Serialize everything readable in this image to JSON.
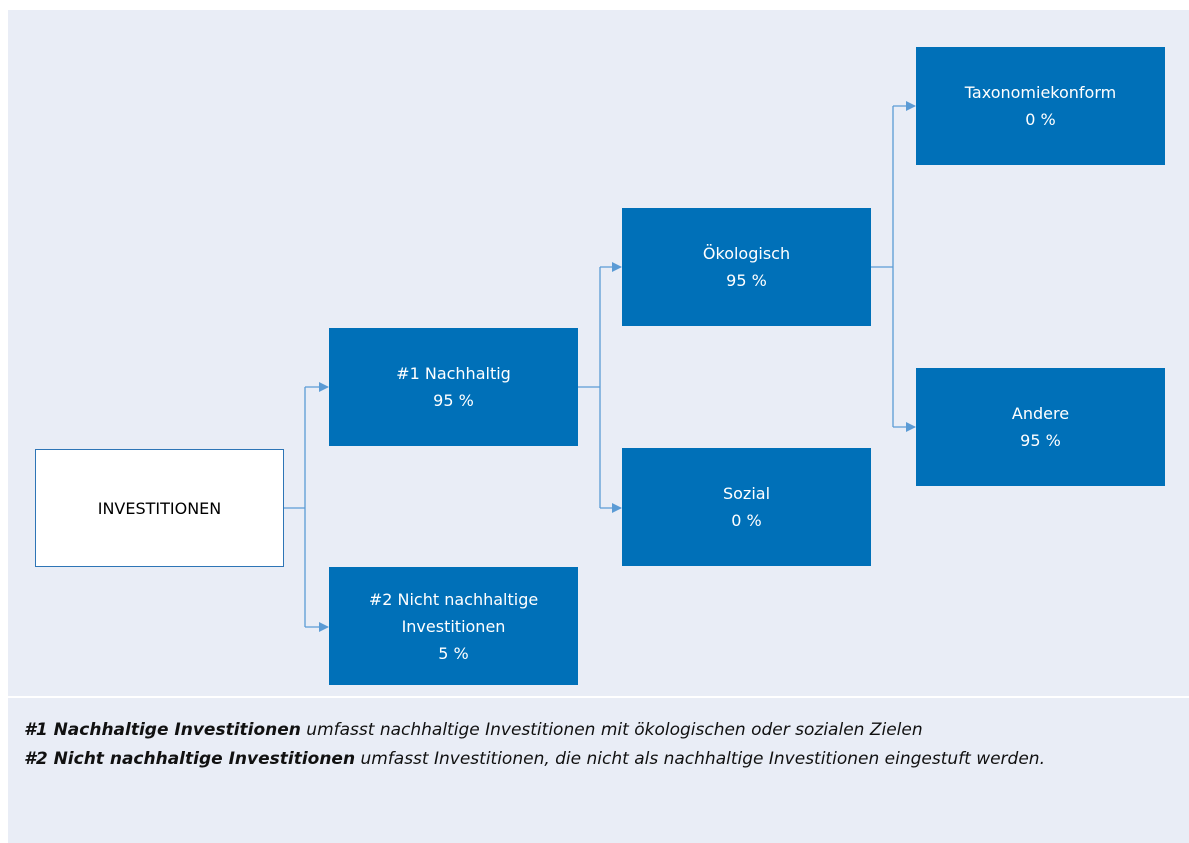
{
  "nodes": [
    {
      "label": [
        "INVESTITIONEN"
      ]
    },
    {
      "label": [
        "#1 Nachhaltig"
      ],
      "share": "95 %"
    },
    {
      "label": [
        "#2 Nicht nachhaltige",
        "Investitionen"
      ],
      "share": "5 %"
    },
    {
      "label": [
        "Ökologisch"
      ],
      "share": "95 %"
    },
    {
      "label": [
        "Sozial"
      ],
      "share": "0 %"
    },
    {
      "label": [
        "Taxonomiekonform"
      ],
      "share": "0 %"
    },
    {
      "label": [
        "Andere"
      ],
      "share": "95 %"
    }
  ],
  "footnotes": [
    {
      "term": "#1 Nachhaltige Investitionen",
      "text": " umfasst nachhaltige Investitionen mit ökologischen oder sozialen Zielen"
    },
    {
      "term": "#2 Nicht nachhaltige Investitionen",
      "text": " umfasst Investitionen, die nicht als nachhaltige Investitionen eingestuft werden."
    }
  ]
}
